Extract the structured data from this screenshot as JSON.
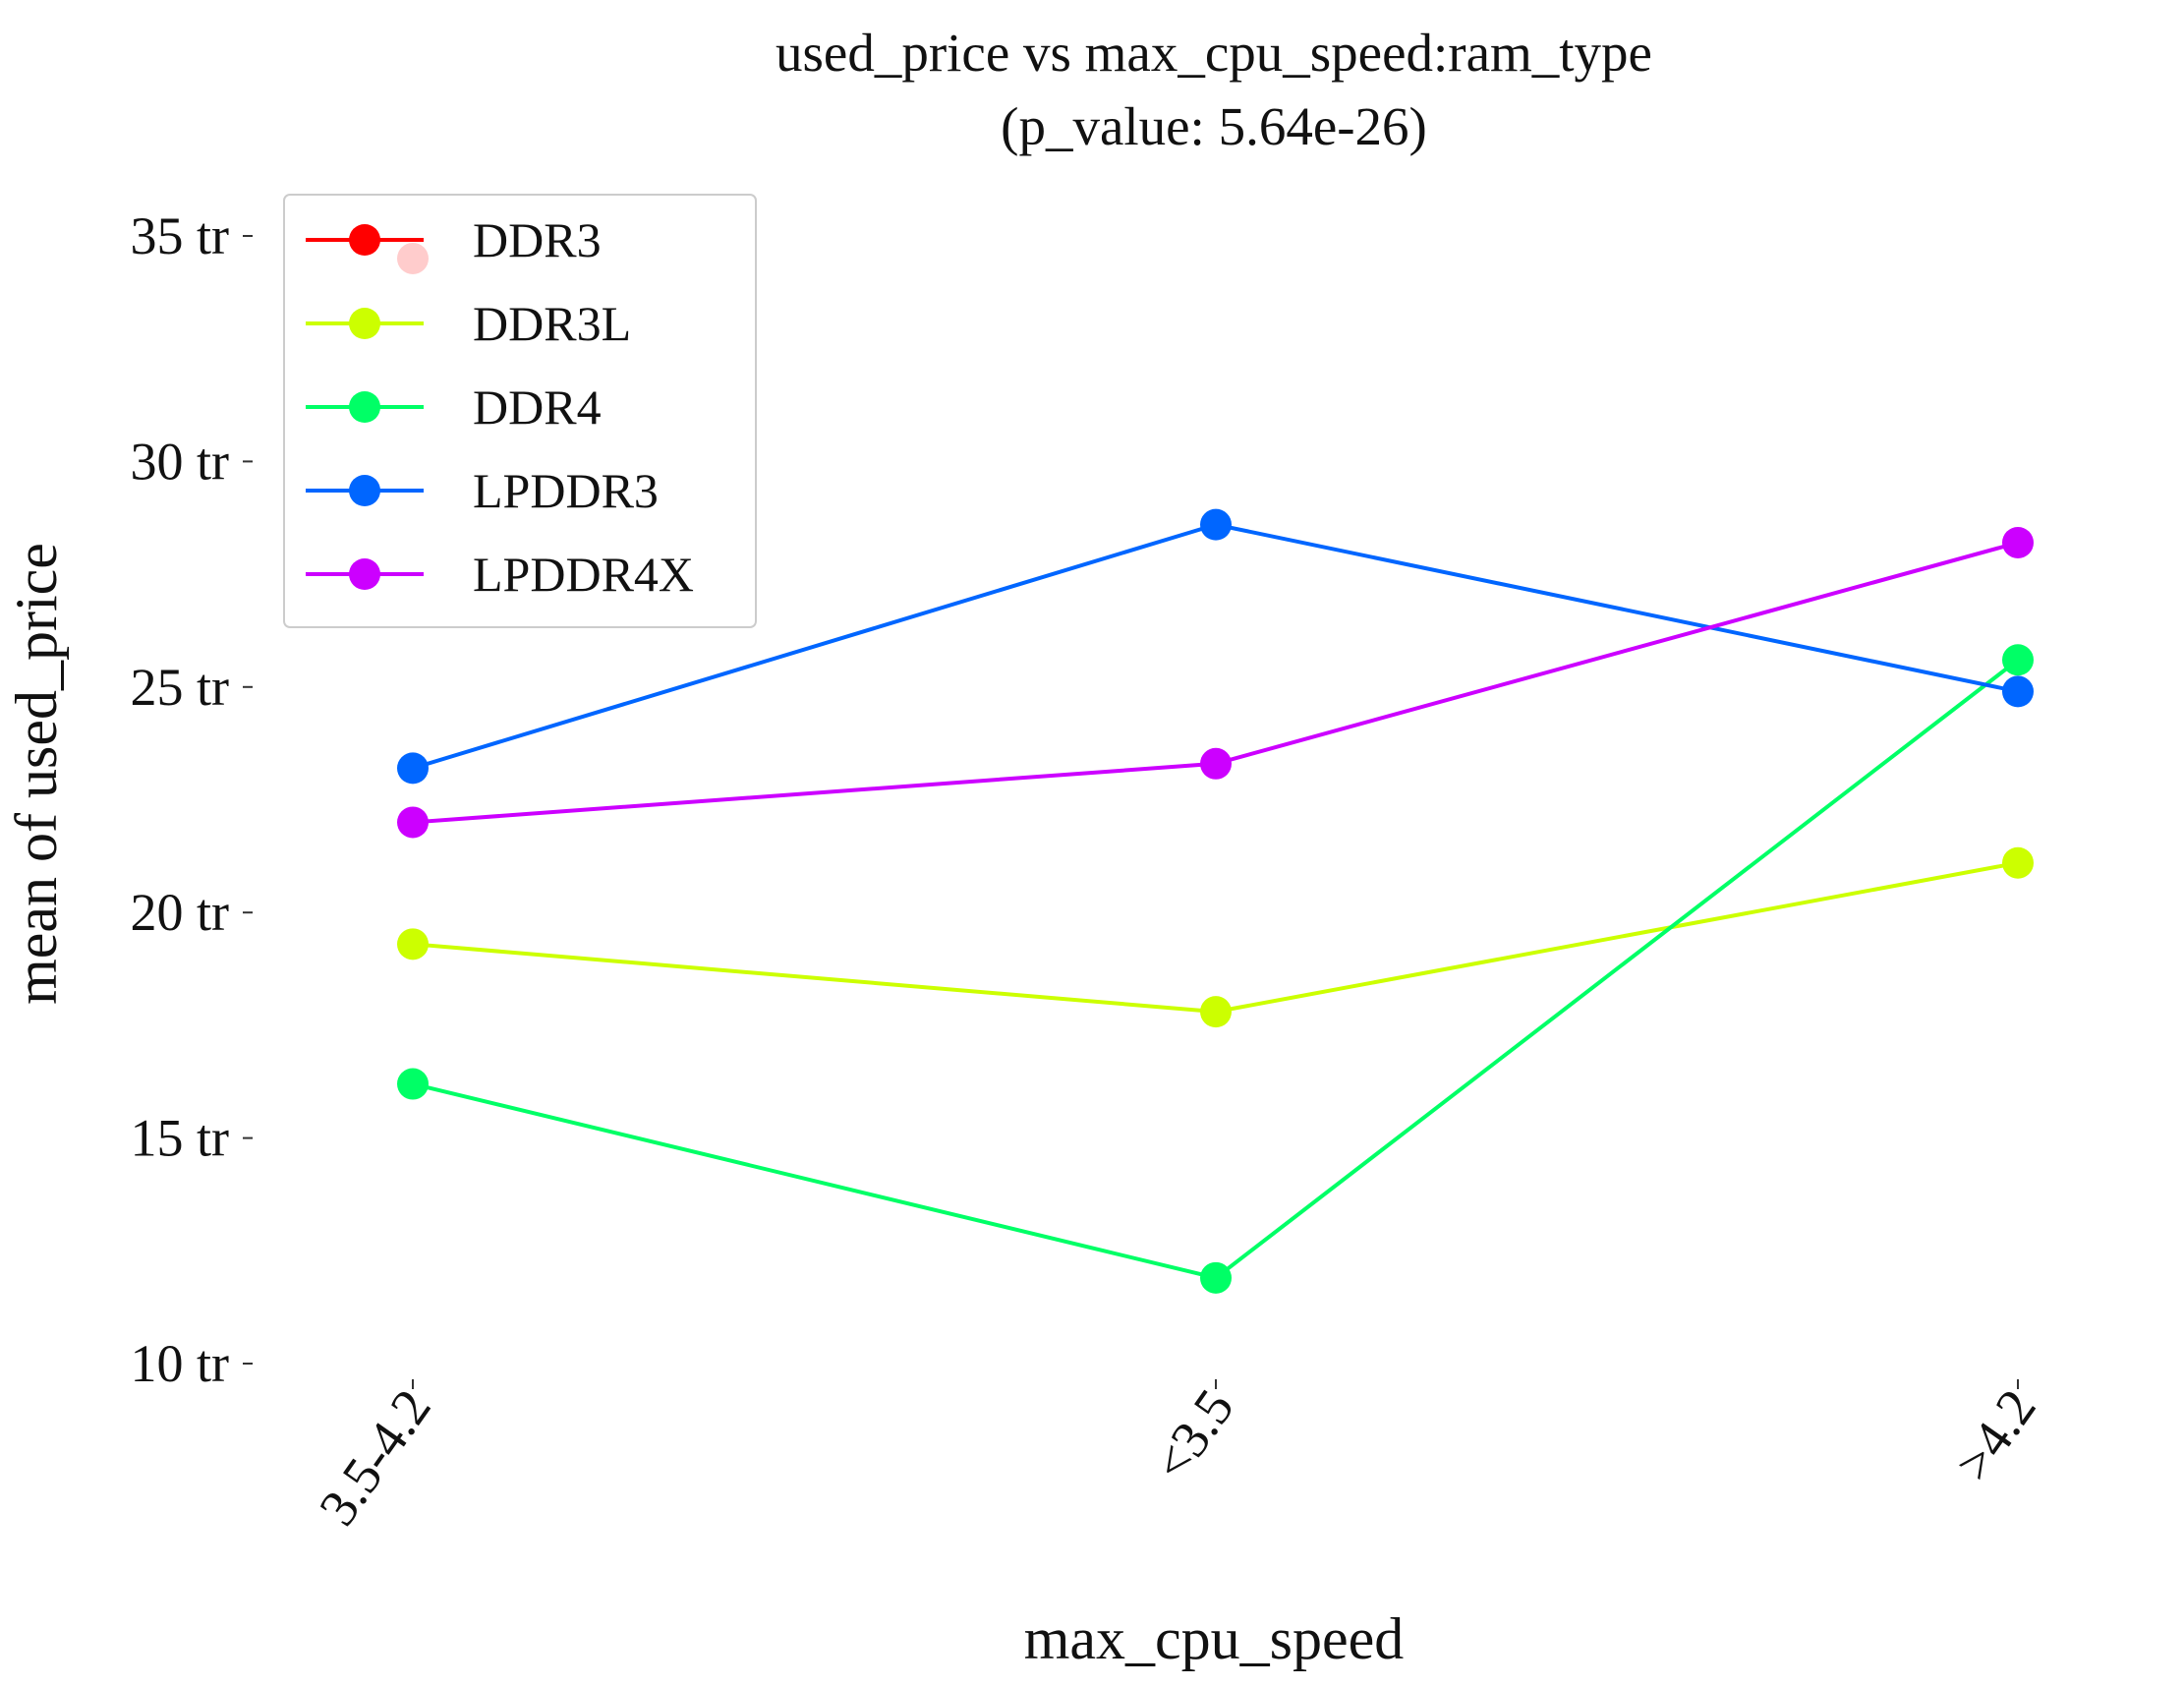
{
  "chart_data": {
    "type": "line",
    "title": "used_price vs max_cpu_speed:ram_type",
    "subtitle": "(p_value: 5.64e-26)",
    "xlabel": "max_cpu_speed",
    "ylabel": "mean of used_price",
    "categories": [
      "3.5-4.2",
      "<3.5",
      ">4.2"
    ],
    "yticks": [
      {
        "value": 10,
        "label": "10 tr"
      },
      {
        "value": 15,
        "label": "15 tr"
      },
      {
        "value": 20,
        "label": "20 tr"
      },
      {
        "value": 25,
        "label": "25 tr"
      },
      {
        "value": 30,
        "label": "30 tr"
      },
      {
        "value": 35,
        "label": "35 tr"
      }
    ],
    "ylim": [
      10,
      35
    ],
    "grid": false,
    "legend_position": "top-left",
    "series": [
      {
        "name": "DDR3",
        "color": "#ff0000",
        "values": [
          34.5,
          null,
          null
        ]
      },
      {
        "name": "DDR3L",
        "color": "#ccff00",
        "values": [
          19.3,
          17.8,
          21.1
        ]
      },
      {
        "name": "DDR4",
        "color": "#00ff66",
        "values": [
          16.2,
          11.9,
          25.6
        ]
      },
      {
        "name": "LPDDR3",
        "color": "#0066ff",
        "values": [
          23.2,
          28.6,
          24.9
        ]
      },
      {
        "name": "LPDDR4X",
        "color": "#cc00ff",
        "values": [
          22.0,
          23.3,
          28.2
        ]
      }
    ]
  }
}
